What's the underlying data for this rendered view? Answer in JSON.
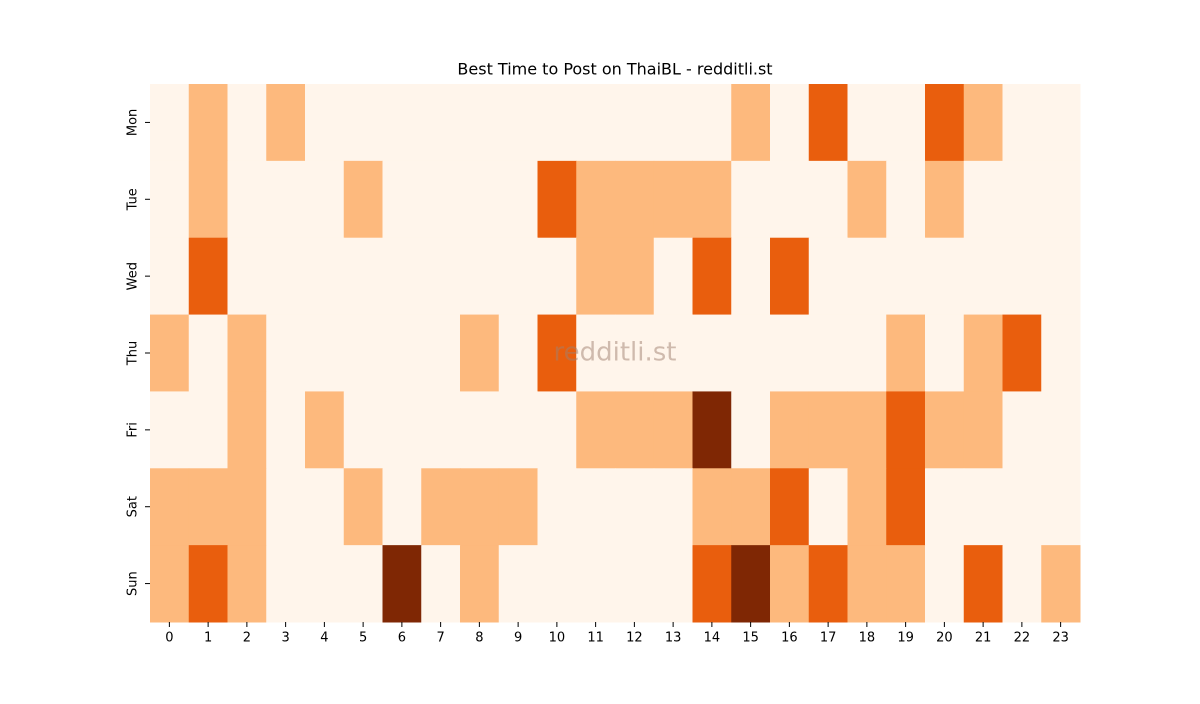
{
  "chart_data": {
    "type": "heatmap",
    "title": "Best Time to Post on ThaiBL - redditli.st",
    "watermark": "redditli.st",
    "x": [
      0,
      1,
      2,
      3,
      4,
      5,
      6,
      7,
      8,
      9,
      10,
      11,
      12,
      13,
      14,
      15,
      16,
      17,
      18,
      19,
      20,
      21,
      22,
      23
    ],
    "y": [
      "Mon",
      "Tue",
      "Wed",
      "Thu",
      "Fri",
      "Sat",
      "Sun"
    ],
    "values": [
      [
        0,
        1,
        0,
        1,
        0,
        0,
        0,
        0,
        0,
        0,
        0,
        0,
        0,
        0,
        0,
        1,
        0,
        2,
        0,
        0,
        2,
        1,
        0,
        0
      ],
      [
        0,
        1,
        0,
        0,
        0,
        1,
        0,
        0,
        0,
        0,
        2,
        1,
        1,
        1,
        1,
        0,
        0,
        0,
        1,
        0,
        1,
        0,
        0,
        0
      ],
      [
        0,
        2,
        0,
        0,
        0,
        0,
        0,
        0,
        0,
        0,
        0,
        1,
        1,
        0,
        2,
        0,
        2,
        0,
        0,
        0,
        0,
        0,
        0,
        0
      ],
      [
        1,
        0,
        1,
        0,
        0,
        0,
        0,
        0,
        1,
        0,
        2,
        0,
        0,
        0,
        0,
        0,
        0,
        0,
        0,
        1,
        0,
        1,
        2,
        0
      ],
      [
        0,
        0,
        1,
        0,
        1,
        0,
        0,
        0,
        0,
        0,
        0,
        1,
        1,
        1,
        3,
        0,
        1,
        1,
        1,
        2,
        1,
        1,
        0,
        0
      ],
      [
        1,
        1,
        1,
        0,
        0,
        1,
        0,
        1,
        1,
        1,
        0,
        0,
        0,
        0,
        1,
        1,
        2,
        0,
        1,
        2,
        0,
        0,
        0,
        0
      ],
      [
        1,
        2,
        1,
        0,
        0,
        0,
        3,
        0,
        1,
        0,
        0,
        0,
        0,
        0,
        2,
        3,
        1,
        2,
        1,
        1,
        0,
        2,
        0,
        1
      ]
    ],
    "zlim": [
      0,
      3
    ],
    "colors": [
      "#fff5eb",
      "#fdb97d",
      "#e95e0d",
      "#7f2704"
    ]
  }
}
